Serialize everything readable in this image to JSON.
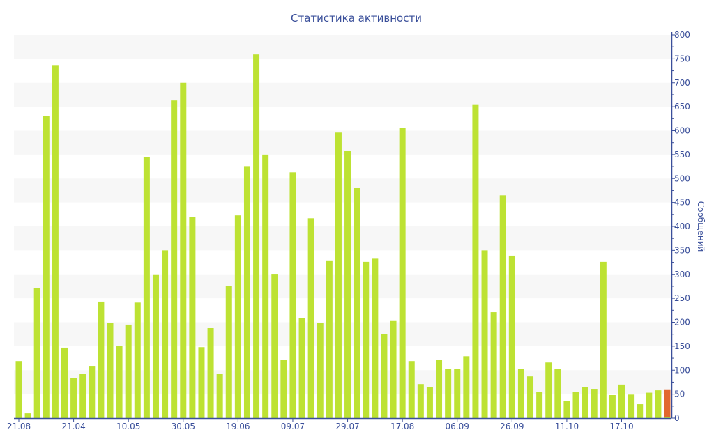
{
  "chart_data": {
    "type": "bar",
    "title": "Статистика активности",
    "xlabel": "",
    "ylabel": "Сообщений",
    "ylim": [
      0,
      800
    ],
    "y_ticks": [
      0,
      50,
      100,
      150,
      200,
      250,
      300,
      350,
      400,
      450,
      500,
      550,
      600,
      650,
      700,
      750,
      800
    ],
    "y_axis_position": "right",
    "grid": "alternating horizontal bands",
    "x_tick_labels": [
      {
        "bar_index": 0,
        "label": "21.08"
      },
      {
        "bar_index": 6,
        "label": "21.04"
      },
      {
        "bar_index": 12,
        "label": "10.05"
      },
      {
        "bar_index": 18,
        "label": "30.05"
      },
      {
        "bar_index": 24,
        "label": "19.06"
      },
      {
        "bar_index": 30,
        "label": "09.07"
      },
      {
        "bar_index": 36,
        "label": "29.07"
      },
      {
        "bar_index": 42,
        "label": "17.08"
      },
      {
        "bar_index": 48,
        "label": "06.09"
      },
      {
        "bar_index": 54,
        "label": "26.09"
      },
      {
        "bar_index": 60,
        "label": "11.10"
      },
      {
        "bar_index": 66,
        "label": "17.10"
      }
    ],
    "series": [
      {
        "name": "messages",
        "color": "#bde233",
        "values": [
          119,
          10,
          272,
          631,
          737,
          147,
          84,
          92,
          109,
          243,
          199,
          150,
          195,
          241,
          545,
          300,
          350,
          663,
          700,
          420,
          148,
          188,
          92,
          275,
          423,
          526,
          759,
          550,
          301,
          122,
          513,
          209,
          417,
          199,
          329,
          596,
          558,
          480,
          326,
          334,
          176,
          204,
          606,
          119,
          71,
          65,
          122,
          103,
          102,
          129,
          655,
          350,
          221,
          465,
          339,
          103,
          87,
          54,
          116,
          103,
          36,
          55,
          64,
          61,
          326,
          48,
          70,
          49,
          29,
          53,
          58,
          2
        ]
      },
      {
        "name": "current",
        "color": "#e2672f",
        "values": [
          0,
          0,
          0,
          0,
          0,
          0,
          0,
          0,
          0,
          0,
          0,
          0,
          0,
          0,
          0,
          0,
          0,
          0,
          0,
          0,
          0,
          0,
          0,
          0,
          0,
          0,
          0,
          0,
          0,
          0,
          0,
          0,
          0,
          0,
          0,
          0,
          0,
          0,
          0,
          0,
          0,
          0,
          0,
          0,
          0,
          0,
          0,
          0,
          0,
          0,
          0,
          0,
          0,
          0,
          0,
          0,
          0,
          0,
          0,
          0,
          0,
          0,
          0,
          0,
          0,
          0,
          0,
          0,
          0,
          0,
          0,
          58
        ]
      }
    ],
    "axis_color": "#3a4f9a",
    "band_color": "#f7f7f7"
  }
}
